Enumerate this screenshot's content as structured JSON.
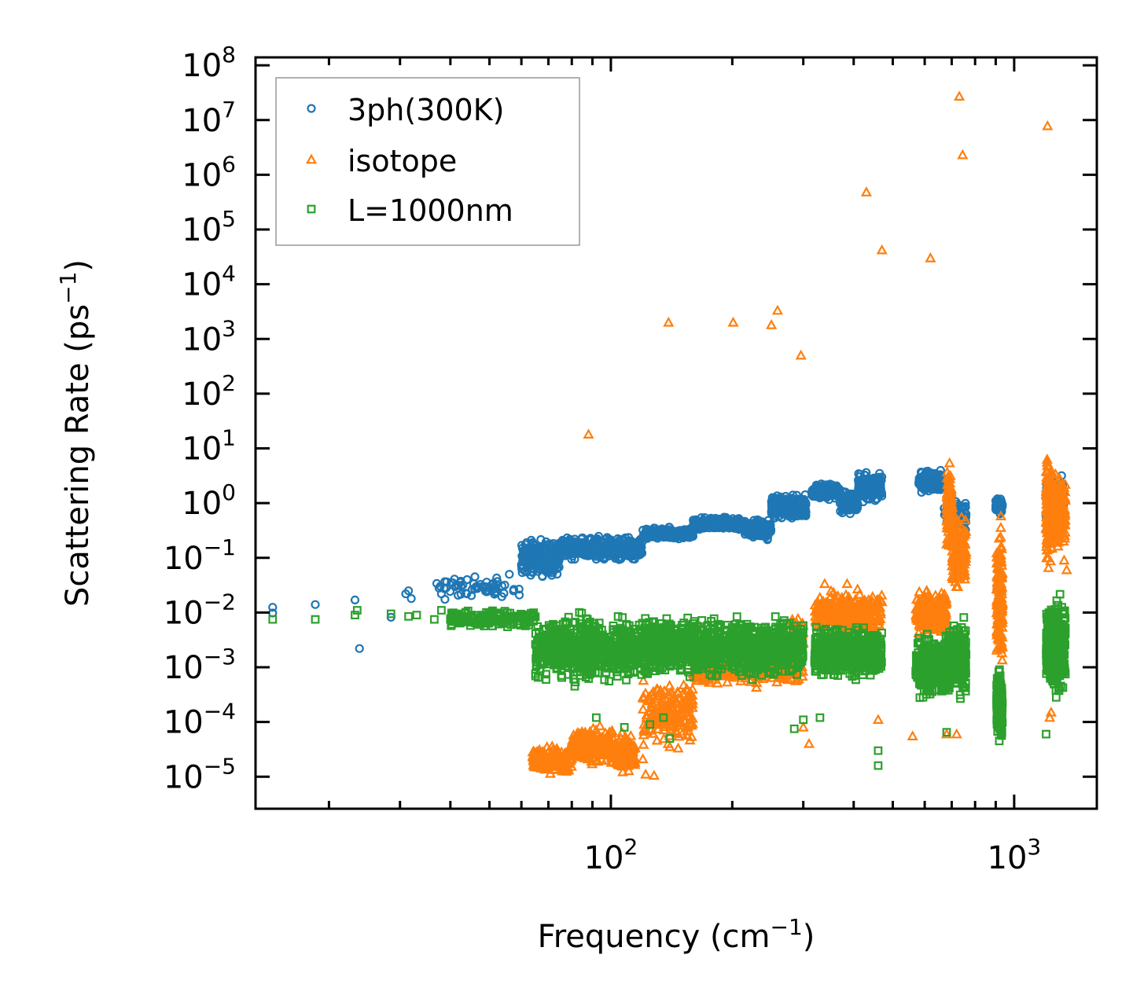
{
  "chart_data": {
    "type": "scatter",
    "title": "",
    "xlabel": "Frequency (cm",
    "xlabel_sup": "−1",
    "xlabel_end": ")",
    "ylabel": "Scattering Rate (ps",
    "ylabel_sup": "−1",
    "ylabel_end": ")",
    "xscale": "log",
    "yscale": "log",
    "xlim": [
      13.15,
      1603
    ],
    "ylim": [
      2.6e-06,
      140000000.0
    ],
    "grid": false,
    "legend_position": "top-left",
    "x_ticks": [
      {
        "value": 100,
        "base": "10",
        "exp": "2"
      },
      {
        "value": 1000,
        "base": "10",
        "exp": "3"
      }
    ],
    "y_ticks": [
      {
        "value": 100000000.0,
        "base": "10",
        "exp": "8"
      },
      {
        "value": 10000000.0,
        "base": "10",
        "exp": "7"
      },
      {
        "value": 1000000.0,
        "base": "10",
        "exp": "6"
      },
      {
        "value": 100000.0,
        "base": "10",
        "exp": "5"
      },
      {
        "value": 10000.0,
        "base": "10",
        "exp": "4"
      },
      {
        "value": 1000.0,
        "base": "10",
        "exp": "3"
      },
      {
        "value": 100.0,
        "base": "10",
        "exp": "2"
      },
      {
        "value": 10.0,
        "base": "10",
        "exp": "1"
      },
      {
        "value": 1.0,
        "base": "10",
        "exp": "0"
      },
      {
        "value": 0.1,
        "base": "10",
        "exp": "−1"
      },
      {
        "value": 0.01,
        "base": "10",
        "exp": "−2"
      },
      {
        "value": 0.001,
        "base": "10",
        "exp": "−3"
      },
      {
        "value": 0.0001,
        "base": "10",
        "exp": "−4"
      },
      {
        "value": 1e-05,
        "base": "10",
        "exp": "−5"
      }
    ],
    "series": [
      {
        "name": "3ph(300K)",
        "marker": "circle",
        "color": "#1f77b4",
        "points": [
          [
            14.5,
            0.0125
          ],
          [
            14.5,
            0.0098
          ],
          [
            18.5,
            0.014
          ],
          [
            23.2,
            0.017
          ],
          [
            23.8,
            0.0022
          ],
          [
            28.5,
            0.0082
          ],
          [
            31,
            0.022
          ],
          [
            31.5,
            0.025
          ],
          [
            32,
            0.018
          ],
          [
            37,
            0.034
          ],
          [
            37.5,
            0.028
          ],
          [
            38,
            0.022
          ],
          [
            44,
            0.04
          ],
          [
            46,
            0.045
          ],
          [
            48,
            0.03
          ],
          [
            52,
            0.024
          ],
          [
            56,
            0.05
          ],
          [
            62,
            0.055
          ]
        ],
        "bands": [
          {
            "x": [
              37,
              60
            ],
            "ylo": 0.015,
            "yhi": 0.05,
            "n": 60
          },
          {
            "x": [
              60,
              75
            ],
            "ylo": 0.04,
            "yhi": 0.26,
            "n": 260
          },
          {
            "x": [
              75,
              120
            ],
            "ylo": 0.08,
            "yhi": 0.27,
            "n": 380
          },
          {
            "x": [
              120,
              160
            ],
            "ylo": 0.2,
            "yhi": 0.38,
            "n": 240
          },
          {
            "x": [
              160,
              215
            ],
            "ylo": 0.3,
            "yhi": 0.6,
            "n": 240
          },
          {
            "x": [
              215,
              250
            ],
            "ylo": 0.2,
            "yhi": 0.55,
            "n": 180
          },
          {
            "x": [
              250,
              305
            ],
            "ylo": 0.45,
            "yhi": 1.6,
            "n": 260
          },
          {
            "x": [
              315,
              370
            ],
            "ylo": 1.1,
            "yhi": 2.5,
            "n": 140
          },
          {
            "x": [
              370,
              410
            ],
            "ylo": 0.55,
            "yhi": 2.0,
            "n": 90
          },
          {
            "x": [
              410,
              470
            ],
            "ylo": 0.9,
            "yhi": 4.0,
            "n": 160
          },
          {
            "x": [
              580,
              660
            ],
            "ylo": 1.4,
            "yhi": 4.5,
            "n": 140
          },
          {
            "x": [
              670,
              760
            ],
            "ylo": 0.25,
            "yhi": 1.5,
            "n": 100
          },
          {
            "x": [
              900,
              935
            ],
            "ylo": 0.6,
            "yhi": 1.4,
            "n": 60
          },
          {
            "x": [
              1200,
              1330
            ],
            "ylo": 0.35,
            "yhi": 4.0,
            "n": 140
          }
        ]
      },
      {
        "name": "isotope",
        "marker": "triangle",
        "color": "#ff7f0e",
        "points": [
          [
            88,
            18
          ],
          [
            139,
            2000
          ],
          [
            201,
            2000
          ],
          [
            250,
            1800
          ],
          [
            259,
            3300
          ],
          [
            296,
            500
          ],
          [
            430,
            480000
          ],
          [
            470,
            42000
          ],
          [
            620,
            30000
          ],
          [
            731,
            27000000.0
          ],
          [
            745,
            2300000.0
          ],
          [
            1210,
            7800000.0
          ],
          [
            122,
            1.1e-05
          ],
          [
            128,
            1.05e-05
          ],
          [
            120,
            2.1e-05
          ],
          [
            140,
            3.5e-05
          ],
          [
            300,
            8e-05
          ],
          [
            310,
            4e-05
          ],
          [
            460,
            0.00011
          ],
          [
            560,
            5.5e-05
          ],
          [
            680,
            6e-05
          ],
          [
            720,
            6e-05
          ],
          [
            1225,
            0.00012
          ],
          [
            1235,
            0.00015
          ],
          [
            1330,
            0.09
          ],
          [
            1350,
            0.06
          ]
        ],
        "bands": [
          {
            "x": [
              64,
              80
            ],
            "ylo": 1e-05,
            "yhi": 4e-05,
            "n": 200
          },
          {
            "x": [
              80,
              100
            ],
            "ylo": 1.5e-05,
            "yhi": 9.5e-05,
            "n": 220
          },
          {
            "x": [
              100,
              115
            ],
            "ylo": 1e-05,
            "yhi": 8e-05,
            "n": 140
          },
          {
            "x": [
              120,
              160
            ],
            "ylo": 3e-05,
            "yhi": 0.0007,
            "n": 200
          },
          {
            "x": [
              160,
              300
            ],
            "ylo": 0.0004,
            "yhi": 0.002,
            "n": 300
          },
          {
            "x": [
              280,
              300
            ],
            "ylo": 0.001,
            "yhi": 0.015,
            "n": 60
          },
          {
            "x": [
              320,
              470
            ],
            "ylo": 0.003,
            "yhi": 0.035,
            "n": 300
          },
          {
            "x": [
              570,
              680
            ],
            "ylo": 0.003,
            "yhi": 0.035,
            "n": 200
          },
          {
            "x": [
              680,
              700
            ],
            "ylo": 0.1,
            "yhi": 8.0,
            "n": 120
          },
          {
            "x": [
              700,
              760
            ],
            "ylo": 0.02,
            "yhi": 1.0,
            "n": 140
          },
          {
            "x": [
              905,
              935
            ],
            "ylo": 0.0003,
            "yhi": 0.9,
            "n": 180
          },
          {
            "x": [
              1200,
              1240
            ],
            "ylo": 0.05,
            "yhi": 9.0,
            "n": 180
          },
          {
            "x": [
              1240,
              1340
            ],
            "ylo": 0.1,
            "yhi": 5.0,
            "n": 160
          }
        ]
      },
      {
        "name": "L=1000nm",
        "marker": "square",
        "color": "#2ca02c",
        "points": [
          [
            14.5,
            0.0075
          ],
          [
            18.5,
            0.0075
          ],
          [
            23.2,
            0.009
          ],
          [
            23.5,
            0.011
          ],
          [
            28.5,
            0.0095
          ],
          [
            31.5,
            0.0085
          ],
          [
            33,
            0.009
          ],
          [
            36.5,
            0.0075
          ],
          [
            38,
            0.011
          ],
          [
            40,
            0.0075
          ],
          [
            44,
            0.0085
          ],
          [
            48,
            0.009
          ],
          [
            53,
            0.0085
          ],
          [
            66,
            0.00065
          ],
          [
            92,
            0.00012
          ],
          [
            108,
            8e-05
          ],
          [
            125,
            9e-05
          ],
          [
            135,
            0.00012
          ],
          [
            140,
            5e-05
          ],
          [
            285,
            7.5e-05
          ],
          [
            300,
            0.00011
          ],
          [
            330,
            0.00012
          ],
          [
            460,
            3e-05
          ],
          [
            460,
            1.6e-05
          ],
          [
            680,
            6.5e-05
          ],
          [
            1200,
            6e-05
          ]
        ],
        "bands": [
          {
            "x": [
              40,
              65
            ],
            "ylo": 0.005,
            "yhi": 0.012,
            "n": 180
          },
          {
            "x": [
              65,
              125
            ],
            "ylo": 0.0004,
            "yhi": 0.012,
            "n": 700
          },
          {
            "x": [
              125,
              300
            ],
            "ylo": 0.0005,
            "yhi": 0.011,
            "n": 900
          },
          {
            "x": [
              320,
              470
            ],
            "ylo": 0.0005,
            "yhi": 0.007,
            "n": 500
          },
          {
            "x": [
              570,
              690
            ],
            "ylo": 0.0002,
            "yhi": 0.005,
            "n": 300
          },
          {
            "x": [
              690,
              760
            ],
            "ylo": 0.0002,
            "yhi": 0.012,
            "n": 200
          },
          {
            "x": [
              905,
              935
            ],
            "ylo": 3.2e-05,
            "yhi": 0.0012,
            "n": 200
          },
          {
            "x": [
              1200,
              1340
            ],
            "ylo": 0.0002,
            "yhi": 0.03,
            "n": 320
          }
        ]
      }
    ]
  }
}
